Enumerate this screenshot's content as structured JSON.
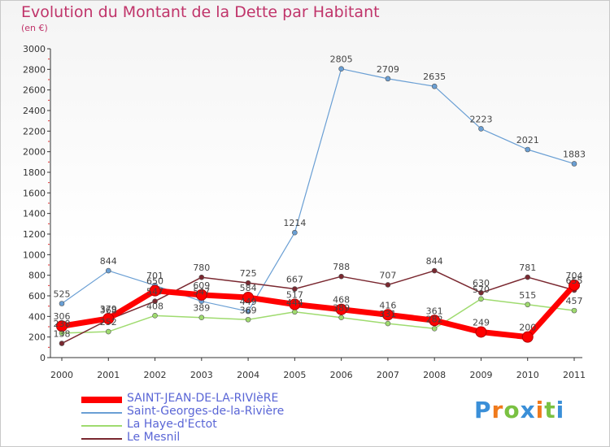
{
  "chart_data": {
    "type": "line",
    "title": "Evolution du Montant de la Dette par Habitant",
    "subtitle": "(en €)",
    "x": [
      "2000",
      "2001",
      "2002",
      "2003",
      "2004",
      "2005",
      "2006",
      "2007",
      "2008",
      "2009",
      "2010",
      "2011"
    ],
    "ylim": [
      0,
      3000
    ],
    "yticks": [
      0,
      200,
      400,
      600,
      800,
      1000,
      1200,
      1400,
      1600,
      1800,
      2000,
      2200,
      2400,
      2600,
      2800,
      3000
    ],
    "grid": false,
    "legend_position": "bottom-left",
    "series": [
      {
        "name": "SAINT-JEAN-DE-LA-RIVIèRE",
        "color": "#ff0000",
        "values": [
          306,
          379,
          650,
          609,
          584,
          517,
          468,
          416,
          361,
          249,
          200,
          704
        ],
        "labels": [
          "306",
          "379",
          "650",
          "609",
          "584",
          "517",
          "468",
          "416",
          "361",
          "249",
          "200",
          "704"
        ]
      },
      {
        "name": "Saint-Georges-de-la-Rivière",
        "color": "#6a9fd4",
        "values": [
          525,
          844,
          701,
          547,
          449,
          1214,
          2805,
          2709,
          2635,
          2223,
          2021,
          1883
        ],
        "labels": [
          "525",
          "844",
          "701",
          "547",
          "449",
          "1214",
          "2805",
          "2709",
          "2635",
          "2223",
          "2021",
          "1883"
        ]
      },
      {
        "name": "La Haye-d'Ectot",
        "color": "#9fdb6f",
        "values": [
          238,
          252,
          408,
          389,
          369,
          444,
          389,
          331,
          282,
          570,
          515,
          457
        ],
        "labels": [
          "238",
          "252",
          "408",
          "389",
          "369",
          "444",
          "389",
          "331",
          "282",
          "570",
          "515",
          "457"
        ]
      },
      {
        "name": "Le Mesnil",
        "color": "#7a2830",
        "values": [
          138,
          368,
          547,
          780,
          725,
          667,
          788,
          707,
          844,
          630,
          781,
          655
        ],
        "labels": [
          "138",
          "368",
          "547",
          "780",
          "725",
          "667",
          "788",
          "707",
          "844",
          "630",
          "781",
          "655"
        ]
      }
    ]
  },
  "logo": {
    "letters": [
      "P",
      "r",
      "o",
      "x",
      "i",
      "t",
      "i"
    ],
    "colors": [
      "#3a8fd8",
      "#f07a1c",
      "#7ac142",
      "#3a8fd8",
      "#f07a1c",
      "#7ac142",
      "#3a8fd8"
    ]
  }
}
